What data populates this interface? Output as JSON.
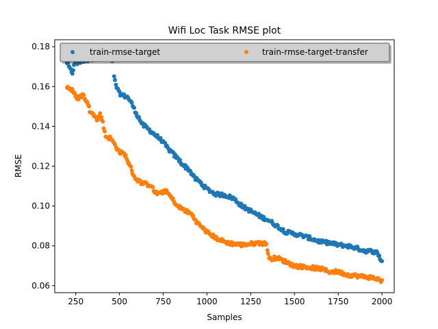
{
  "chart_data": {
    "type": "scatter",
    "title": "Wifi Loc Task RMSE plot",
    "xlabel": "Samples",
    "ylabel": "RMSE",
    "xlim": [
      130,
      2070
    ],
    "ylim": [
      0.0565,
      0.1835
    ],
    "xticks": [
      250,
      500,
      750,
      1000,
      1250,
      1500,
      1750,
      2000
    ],
    "xtick_labels": [
      "250",
      "500",
      "750",
      "1000",
      "1250",
      "1500",
      "1750",
      "2000"
    ],
    "yticks": [
      0.06,
      0.08,
      0.1,
      0.12,
      0.14,
      0.16,
      0.18
    ],
    "ytick_labels": [
      "0.06",
      "0.08",
      "0.10",
      "0.12",
      "0.14",
      "0.16",
      "0.18"
    ],
    "grid": false,
    "legend": {
      "placement": "top",
      "columns": 2
    },
    "x_range": [
      200,
      2000
    ],
    "x_step": 5,
    "series": [
      {
        "name": "train-rmse-target",
        "color": "#1f77b4",
        "anchors": [
          [
            200,
            0.172
          ],
          [
            215,
            0.169
          ],
          [
            230,
            0.167
          ],
          [
            245,
            0.172
          ],
          [
            260,
            0.1715
          ],
          [
            280,
            0.1728
          ],
          [
            300,
            0.173
          ],
          [
            330,
            0.1738
          ],
          [
            360,
            0.1742
          ],
          [
            390,
            0.1745
          ],
          [
            420,
            0.174
          ],
          [
            450,
            0.1735
          ],
          [
            465,
            0.1732
          ],
          [
            470,
            0.1645
          ],
          [
            480,
            0.161
          ],
          [
            495,
            0.157
          ],
          [
            520,
            0.1555
          ],
          [
            550,
            0.1545
          ],
          [
            575,
            0.1505
          ],
          [
            600,
            0.146
          ],
          [
            630,
            0.141
          ],
          [
            660,
            0.139
          ],
          [
            700,
            0.136
          ],
          [
            740,
            0.133
          ],
          [
            780,
            0.1285
          ],
          [
            820,
            0.125
          ],
          [
            860,
            0.121
          ],
          [
            900,
            0.118
          ],
          [
            930,
            0.114
          ],
          [
            960,
            0.112
          ],
          [
            1000,
            0.1085
          ],
          [
            1050,
            0.106
          ],
          [
            1100,
            0.1055
          ],
          [
            1150,
            0.104
          ],
          [
            1200,
            0.1
          ],
          [
            1250,
            0.0975
          ],
          [
            1300,
            0.095
          ],
          [
            1350,
            0.093
          ],
          [
            1400,
            0.09
          ],
          [
            1450,
            0.087
          ],
          [
            1500,
            0.086
          ],
          [
            1550,
            0.085
          ],
          [
            1600,
            0.0835
          ],
          [
            1650,
            0.082
          ],
          [
            1700,
            0.0815
          ],
          [
            1750,
            0.0805
          ],
          [
            1800,
            0.08
          ],
          [
            1850,
            0.079
          ],
          [
            1900,
            0.0775
          ],
          [
            1950,
            0.0772
          ],
          [
            1975,
            0.0765
          ],
          [
            2000,
            0.072
          ]
        ]
      },
      {
        "name": "train-rmse-target-transfer",
        "color": "#ff7f0e",
        "anchors": [
          [
            200,
            0.16
          ],
          [
            230,
            0.158
          ],
          [
            260,
            0.154
          ],
          [
            290,
            0.156
          ],
          [
            300,
            0.1545
          ],
          [
            315,
            0.152
          ],
          [
            330,
            0.148
          ],
          [
            350,
            0.147
          ],
          [
            370,
            0.143
          ],
          [
            390,
            0.146
          ],
          [
            400,
            0.144
          ],
          [
            420,
            0.135
          ],
          [
            450,
            0.134
          ],
          [
            480,
            0.13
          ],
          [
            500,
            0.127
          ],
          [
            530,
            0.126
          ],
          [
            560,
            0.12
          ],
          [
            590,
            0.114
          ],
          [
            620,
            0.112
          ],
          [
            650,
            0.111
          ],
          [
            680,
            0.1105
          ],
          [
            700,
            0.107
          ],
          [
            730,
            0.106
          ],
          [
            760,
            0.108
          ],
          [
            790,
            0.105
          ],
          [
            830,
            0.1
          ],
          [
            870,
            0.098
          ],
          [
            910,
            0.096
          ],
          [
            950,
            0.091
          ],
          [
            1000,
            0.087
          ],
          [
            1050,
            0.084
          ],
          [
            1100,
            0.082
          ],
          [
            1150,
            0.081
          ],
          [
            1200,
            0.0805
          ],
          [
            1250,
            0.081
          ],
          [
            1300,
            0.0815
          ],
          [
            1340,
            0.081
          ],
          [
            1355,
            0.0735
          ],
          [
            1400,
            0.074
          ],
          [
            1450,
            0.072
          ],
          [
            1500,
            0.07
          ],
          [
            1550,
            0.0695
          ],
          [
            1600,
            0.069
          ],
          [
            1650,
            0.0685
          ],
          [
            1700,
            0.067
          ],
          [
            1750,
            0.067
          ],
          [
            1800,
            0.0655
          ],
          [
            1850,
            0.065
          ],
          [
            1900,
            0.0645
          ],
          [
            1950,
            0.064
          ],
          [
            2000,
            0.0625
          ]
        ]
      }
    ]
  }
}
